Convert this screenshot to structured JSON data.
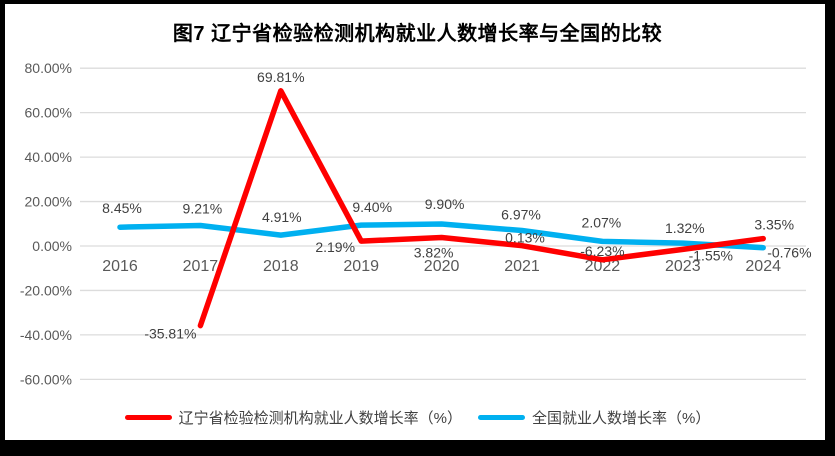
{
  "colors": {
    "liaoning": "#FF0000",
    "national": "#00B0F0",
    "grid": "#DCDCDC",
    "axis_text": "#595959",
    "label_text": "#404040",
    "title_text": "#000000",
    "frame": "#000000",
    "background": "#FFFFFF"
  },
  "chart_data": {
    "type": "line",
    "title": "图7 辽宁省检验检测机构就业人数增长率与全国的比较",
    "categories": [
      "2016",
      "2017",
      "2018",
      "2019",
      "2020",
      "2021",
      "2022",
      "2023",
      "2024"
    ],
    "series": [
      {
        "name": "辽宁省检验检测机构就业人数增长率（%）",
        "color_key": "liaoning",
        "values": [
          null,
          -35.81,
          69.81,
          2.19,
          3.82,
          0.13,
          -6.23,
          -1.55,
          3.35
        ],
        "labels": [
          "",
          "-35.81%",
          "69.81%",
          "2.19%",
          "3.82%",
          "0.13%",
          "-6.23%",
          "-1.55%",
          "3.35%"
        ]
      },
      {
        "name": "全国就业人数增长率（%）",
        "color_key": "national",
        "values": [
          8.45,
          9.21,
          4.91,
          9.4,
          9.9,
          6.97,
          2.07,
          1.32,
          -0.76
        ],
        "labels": [
          "8.45%",
          "9.21%",
          "4.91%",
          "9.40%",
          "9.90%",
          "6.97%",
          "2.07%",
          "1.32%",
          "-0.76%"
        ]
      }
    ],
    "y_axis": {
      "min": -60,
      "max": 80,
      "step": 20,
      "tick_labels": [
        "80.00%",
        "60.00%",
        "40.00%",
        "20.00%",
        "0.00%",
        "-20.00%",
        "-40.00%",
        "-60.00%"
      ]
    },
    "x_axis": {
      "tick_labels": [
        "2016",
        "2017",
        "2018",
        "2019",
        "2020",
        "2021",
        "2022",
        "2023",
        "2024"
      ]
    },
    "grid": true,
    "legend_position": "bottom"
  }
}
